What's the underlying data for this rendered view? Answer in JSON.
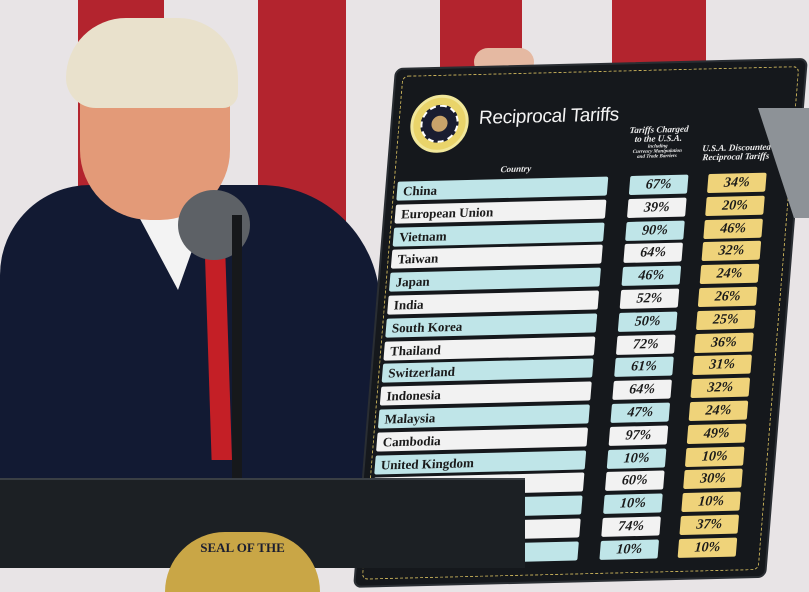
{
  "board": {
    "title": "Reciprocal Tariffs",
    "headers": {
      "country": "Country",
      "charged_line1": "Tariffs Charged",
      "charged_line2": "to the U.S.A.",
      "charged_sub1": "including",
      "charged_sub2": "Currency Manipulation",
      "charged_sub3": "and Trade Barriers",
      "reciprocal_line1": "U.S.A. Discounted",
      "reciprocal_line2": "Reciprocal Tariffs"
    },
    "seal_text": "Seal of the President of the United States",
    "rows": [
      {
        "country": "China",
        "charged": "67%",
        "reciprocal": "34%"
      },
      {
        "country": "European Union",
        "charged": "39%",
        "reciprocal": "20%"
      },
      {
        "country": "Vietnam",
        "charged": "90%",
        "reciprocal": "46%"
      },
      {
        "country": "Taiwan",
        "charged": "64%",
        "reciprocal": "32%"
      },
      {
        "country": "Japan",
        "charged": "46%",
        "reciprocal": "24%"
      },
      {
        "country": "India",
        "charged": "52%",
        "reciprocal": "26%"
      },
      {
        "country": "South Korea",
        "charged": "50%",
        "reciprocal": "25%"
      },
      {
        "country": "Thailand",
        "charged": "72%",
        "reciprocal": "36%"
      },
      {
        "country": "Switzerland",
        "charged": "61%",
        "reciprocal": "31%"
      },
      {
        "country": "Indonesia",
        "charged": "64%",
        "reciprocal": "32%"
      },
      {
        "country": "Malaysia",
        "charged": "47%",
        "reciprocal": "24%"
      },
      {
        "country": "Cambodia",
        "charged": "97%",
        "reciprocal": "49%"
      },
      {
        "country": "United Kingdom",
        "charged": "10%",
        "reciprocal": "10%"
      },
      {
        "country": "",
        "charged": "60%",
        "reciprocal": "30%"
      },
      {
        "country": "",
        "charged": "10%",
        "reciprocal": "10%"
      },
      {
        "country": "",
        "charged": "74%",
        "reciprocal": "37%"
      },
      {
        "country": "",
        "charged": "10%",
        "reciprocal": "10%"
      }
    ]
  },
  "podium_seal_text": "SEAL OF THE",
  "colors": {
    "teal": "#bfe5e8",
    "white": "#f2f2f2",
    "gold": "#efd37a",
    "board": "#15181c",
    "flag_red": "#b3242e"
  }
}
